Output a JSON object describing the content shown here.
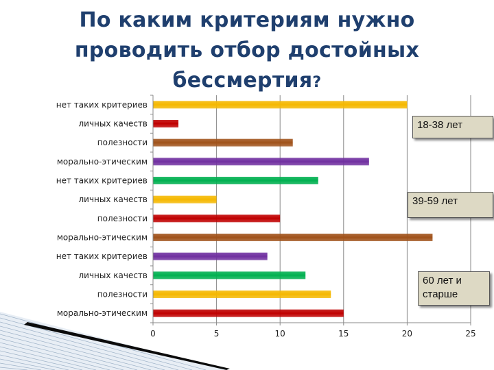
{
  "title": {
    "main": "По каким критериям нужно проводить отбор достойных бессмертия",
    "mark": "?"
  },
  "callouts": [
    "18-38 лет",
    "39-59  лет",
    "60 лет и старше"
  ],
  "colors": {
    "yellow": "#f5b800",
    "red": "#c00000",
    "brown": "#a0521a",
    "purple": "#7030a0",
    "green": "#00b050",
    "axis": "#888888",
    "grid": "#888888"
  },
  "chart_data": {
    "type": "bar",
    "orientation": "horizontal",
    "title": "По каким критериям нужно проводить отбор достойных бессмертия?",
    "xlim": [
      0,
      25
    ],
    "xticks": [
      0,
      5,
      10,
      15,
      20,
      25
    ],
    "grid": "vertical",
    "legend": "none",
    "bars": [
      {
        "label": "нет таких критериев",
        "value": 20,
        "color": "yellow"
      },
      {
        "label": "личных качеств",
        "value": 2,
        "color": "red"
      },
      {
        "label": "полезности",
        "value": 11,
        "color": "brown"
      },
      {
        "label": "морально-этическим",
        "value": 17,
        "color": "purple"
      },
      {
        "label": "нет таких критериев",
        "value": 13,
        "color": "green"
      },
      {
        "label": "личных качеств",
        "value": 5,
        "color": "yellow"
      },
      {
        "label": "полезности",
        "value": 10,
        "color": "red"
      },
      {
        "label": "морально-этическим",
        "value": 22,
        "color": "brown"
      },
      {
        "label": "нет таких критериев",
        "value": 9,
        "color": "purple"
      },
      {
        "label": "личных качеств",
        "value": 12,
        "color": "green"
      },
      {
        "label": "полезности",
        "value": 14,
        "color": "yellow"
      },
      {
        "label": "морально-этическим",
        "value": 15,
        "color": "red"
      }
    ]
  }
}
